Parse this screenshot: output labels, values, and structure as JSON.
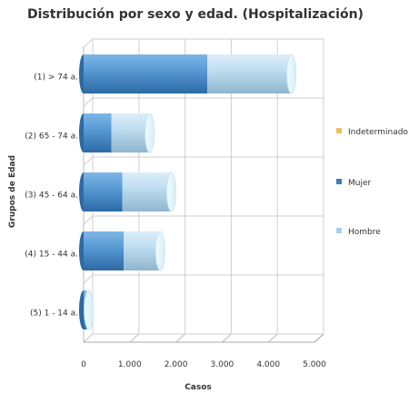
{
  "chart_data": {
    "type": "bar",
    "orientation": "horizontal",
    "stacked": true,
    "title": "Distribución por sexo y edad. (Hospitalización)",
    "xlabel": "Casos",
    "ylabel": "Grupos de Edad",
    "categories": [
      "(1) > 74 a.",
      "(2) 65 - 74 a.",
      "(3) 45 - 64 a.",
      "(4) 15 - 44 a.",
      "(5) 1 - 14 a."
    ],
    "series": [
      {
        "name": "Indeterminado",
        "color": "#f0c060",
        "values": [
          0,
          0,
          0,
          0,
          0
        ]
      },
      {
        "name": "Mujer",
        "color": "#3a7ec0",
        "values": [
          2680,
          600,
          840,
          870,
          60
        ]
      },
      {
        "name": "Hombre",
        "color": "#b0d4ee",
        "values": [
          1820,
          830,
          1060,
          790,
          50
        ]
      }
    ],
    "xlim": [
      0,
      5000
    ],
    "xticks": [
      "0",
      "1.000",
      "2.000",
      "3.000",
      "4.000",
      "5.000"
    ],
    "grid": true,
    "legend_position": "right"
  }
}
